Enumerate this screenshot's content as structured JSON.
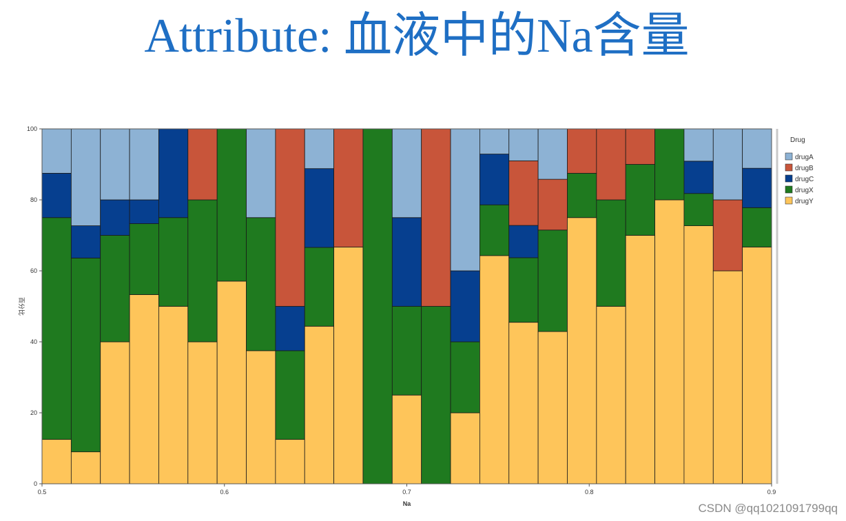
{
  "page": {
    "title": "Attribute: 血液中的Na含量",
    "watermark": "CSDN @qq1021091799qq"
  },
  "colors": {
    "drugA": "#8db2d4",
    "drugB": "#c8553a",
    "drugC": "#063f8f",
    "drugX": "#1f7a1f",
    "drugY": "#fec55a",
    "title": "#1f6fc4"
  },
  "chart_data": {
    "type": "bar",
    "stacked": true,
    "percent": true,
    "xlabel": "Na",
    "ylabel": "百分比",
    "xlim": [
      0.5,
      0.9
    ],
    "ylim": [
      0,
      100
    ],
    "xticks": [
      "0.5",
      "0.6",
      "0.7",
      "0.8",
      "0.9"
    ],
    "yticks": [
      "0",
      "20",
      "40",
      "60",
      "80",
      "100"
    ],
    "bin_width": 0.016,
    "bins": [
      0.5,
      0.516,
      0.532,
      0.548,
      0.564,
      0.58,
      0.596,
      0.612,
      0.628,
      0.644,
      0.66,
      0.676,
      0.692,
      0.708,
      0.724,
      0.74,
      0.756,
      0.772,
      0.788,
      0.804,
      0.82,
      0.836,
      0.852,
      0.868,
      0.884
    ],
    "legend": {
      "title": "Drug",
      "position": "right"
    },
    "series": [
      {
        "name": "drugY",
        "values": [
          12.5,
          9,
          40,
          53.3,
          50,
          40,
          57.1,
          37.5,
          12.5,
          44.4,
          66.7,
          0,
          25,
          0,
          20,
          64.3,
          45.5,
          42.9,
          75,
          50,
          70,
          80,
          72.7,
          60,
          66.7
        ]
      },
      {
        "name": "drugX",
        "values": [
          62.5,
          54.6,
          30,
          20,
          25,
          40,
          42.9,
          37.5,
          25,
          22.2,
          0,
          100,
          25,
          50,
          20,
          14.3,
          18.2,
          28.6,
          12.5,
          30,
          20,
          20,
          9.1,
          0,
          11.1
        ]
      },
      {
        "name": "drugC",
        "values": [
          12.5,
          9.1,
          10,
          6.7,
          25,
          0,
          0,
          0,
          12.5,
          22.2,
          0,
          0,
          25,
          0,
          20,
          14.3,
          9.1,
          0,
          0,
          0,
          0,
          0,
          9.1,
          0,
          11.1
        ]
      },
      {
        "name": "drugB",
        "values": [
          0,
          0,
          0,
          0,
          0,
          20,
          0,
          0,
          50,
          0,
          33.3,
          0,
          0,
          50,
          0,
          0,
          18.2,
          14.3,
          12.5,
          20,
          10,
          0,
          0,
          20,
          0
        ]
      },
      {
        "name": "drugA",
        "values": [
          12.5,
          27.3,
          20,
          20,
          0,
          0,
          0,
          25,
          0,
          11.2,
          0,
          0,
          25,
          0,
          40,
          7.1,
          9.1,
          14.2,
          0,
          0,
          0,
          0,
          9.1,
          20,
          11.1
        ]
      }
    ]
  }
}
